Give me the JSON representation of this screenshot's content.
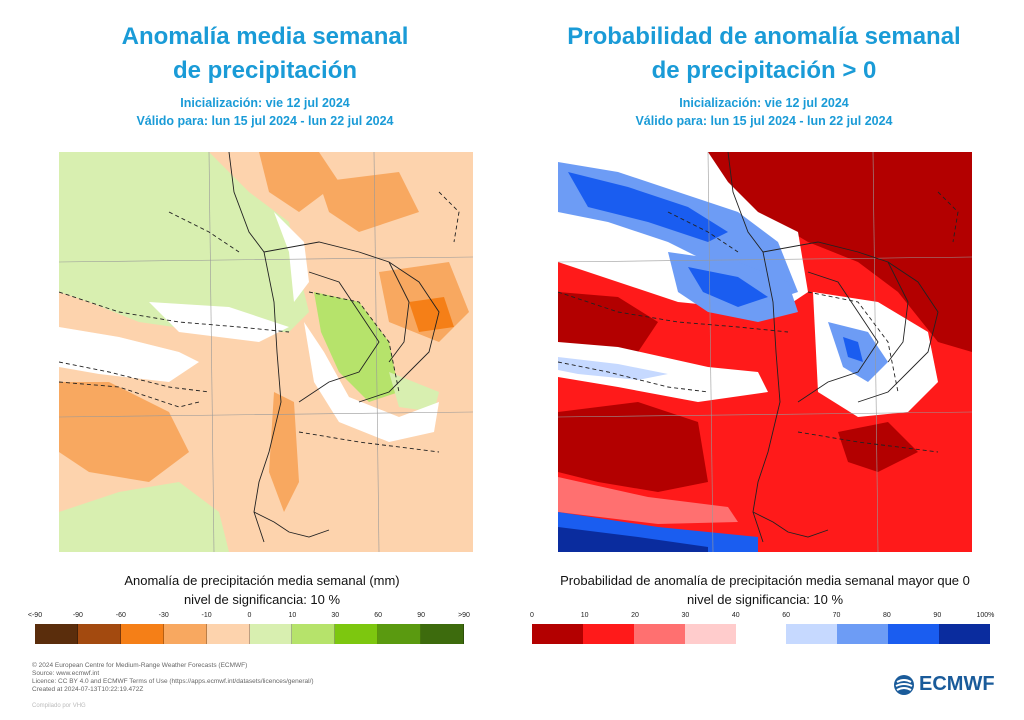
{
  "left": {
    "title_line1": "Anomalía media semanal",
    "title_line2": "de precipitación",
    "init": "Inicialización: vie 12 jul 2024",
    "valid": "Válido para: lun 15 jul 2024 - lun 22 jul 2024",
    "caption_line1": "Anomalía de precipitación media semanal (mm)",
    "caption_line2": "nivel de significancia: 10 %",
    "ticks": [
      "<-90",
      "-90",
      "-60",
      "-30",
      "-10",
      "0",
      "10",
      "30",
      "60",
      "90",
      ">90"
    ],
    "colors": [
      "#5a2d0c",
      "#a34a0f",
      "#f57f17",
      "#f8a860",
      "#fdd3ad",
      "#d8efb0",
      "#b6e36b",
      "#7dc70f",
      "#5a9a10",
      "#3d6b0d"
    ]
  },
  "right": {
    "title_line1": "Probabilidad de anomalía semanal",
    "title_line2": "de precipitación > 0",
    "init": "Inicialización: vie 12 jul 2024",
    "valid": "Válido para: lun 15 jul 2024 - lun 22 jul 2024",
    "caption_line1": "Probabilidad de anomalía de precipitación media semanal mayor que 0",
    "caption_line2": "nivel de significancia: 10 %",
    "ticks": [
      "0",
      "10",
      "20",
      "30",
      "40",
      "60",
      "70",
      "80",
      "90",
      "100%"
    ],
    "colors": [
      "#b30000",
      "#ff1a1a",
      "#ff7070",
      "#ffcccc",
      "#ffffff",
      "#c6d9ff",
      "#6d9cf5",
      "#1a5df0",
      "#0a2c9e"
    ]
  },
  "footer": {
    "line1": "© 2024 European Centre for Medium-Range Weather Forecasts (ECMWF)",
    "line2": "Source: www.ecmwf.int",
    "line3": "Licence: CC BY 4.0 and ECMWF Terms of Use (https://apps.ecmwf.int/datasets/licences/general/)",
    "line4": "Created at 2024-07-13T10:22:19.472Z",
    "compiled": "Compilado por VHG"
  },
  "brand": {
    "logo_text": "ECMWF",
    "color": "#1a5b9a"
  }
}
